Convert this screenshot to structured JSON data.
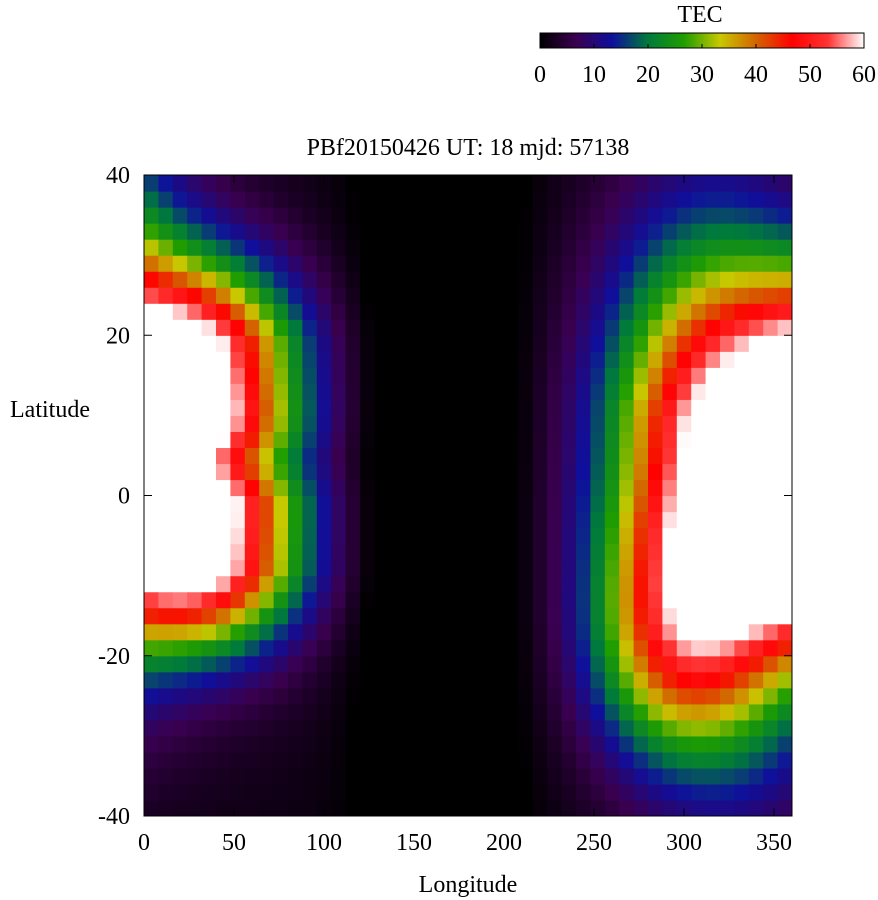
{
  "chart_data": {
    "type": "heatmap",
    "title": "PBf20150426  UT: 18  mjd: 57138",
    "xlabel": "Longitude",
    "ylabel": "Latitude",
    "xlim": [
      0,
      360
    ],
    "ylim": [
      -40,
      40
    ],
    "x_ticks": [
      "0",
      "50",
      "100",
      "150",
      "200",
      "250",
      "300",
      "350"
    ],
    "y_ticks": [
      "-40",
      "-20",
      "0",
      "20",
      "40"
    ],
    "x_tick_values": [
      0,
      50,
      100,
      150,
      200,
      250,
      300,
      350
    ],
    "y_tick_values": [
      -40,
      -20,
      0,
      20,
      40
    ],
    "grid_resolution": {
      "lon_step": 8,
      "lat_step": 2
    },
    "colorbar": {
      "label": "TEC",
      "range": [
        0,
        60
      ],
      "ticks": [
        "0",
        "10",
        "20",
        "30",
        "40",
        "50",
        "60"
      ],
      "tick_values": [
        0,
        10,
        20,
        30,
        40,
        50,
        60
      ],
      "colors": [
        "#000000",
        "#3a0050",
        "#0f0f9c",
        "#007a3c",
        "#1f9d00",
        "#c8c800",
        "#d36400",
        "#ff0000",
        "#ff3333",
        "#ffffff"
      ]
    },
    "value_range": [
      0,
      60
    ],
    "features": {
      "background": 3,
      "western_crest": {
        "lon_center": 30,
        "lat_north": 17,
        "lat_south": -7,
        "peak": 55,
        "lon_width": 75
      },
      "eastern_crest": {
        "lon_center": 320,
        "lat_center": 3,
        "peak": 56,
        "lon_width": 80,
        "lat_width": 28
      },
      "low_region": {
        "lon_center": 165,
        "value": 4
      }
    }
  }
}
